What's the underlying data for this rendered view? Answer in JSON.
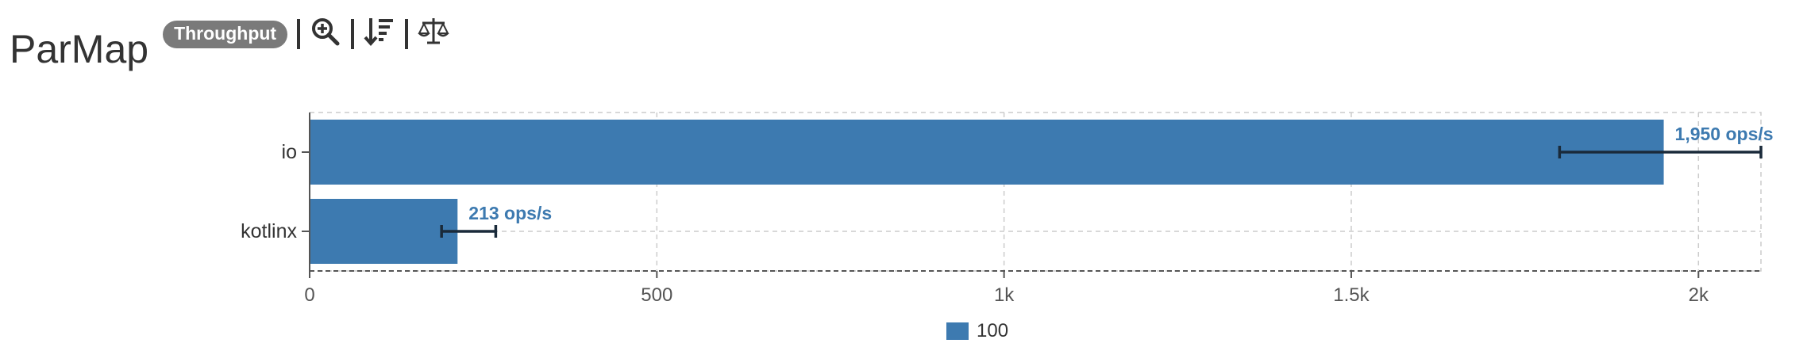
{
  "header": {
    "title": "ParMap",
    "badge": "Throughput",
    "tools": [
      {
        "name": "zoom-in-icon"
      },
      {
        "name": "sort-icon"
      },
      {
        "name": "compare-icon"
      }
    ]
  },
  "colors": {
    "bar": "#3d7ab0",
    "error": "#1a2a3a",
    "label": "#3d7ab0",
    "grid": "#cccccc",
    "axis": "#555555"
  },
  "chart_data": {
    "type": "bar",
    "orientation": "horizontal",
    "categories": [
      "io",
      "kotlinx"
    ],
    "series": [
      {
        "name": "100",
        "values": [
          1950,
          213
        ],
        "error_low": [
          1800,
          190
        ],
        "error_high": [
          2090,
          268
        ],
        "labels": [
          "1,950 ops/s",
          "213 ops/s"
        ]
      }
    ],
    "xlim": [
      0,
      2090
    ],
    "xticks": [
      0,
      500,
      1000,
      1500,
      2000
    ],
    "xtick_labels": [
      "0",
      "500",
      "1k",
      "1.5k",
      "2k"
    ],
    "grid": true,
    "legend": "bottom-center"
  }
}
